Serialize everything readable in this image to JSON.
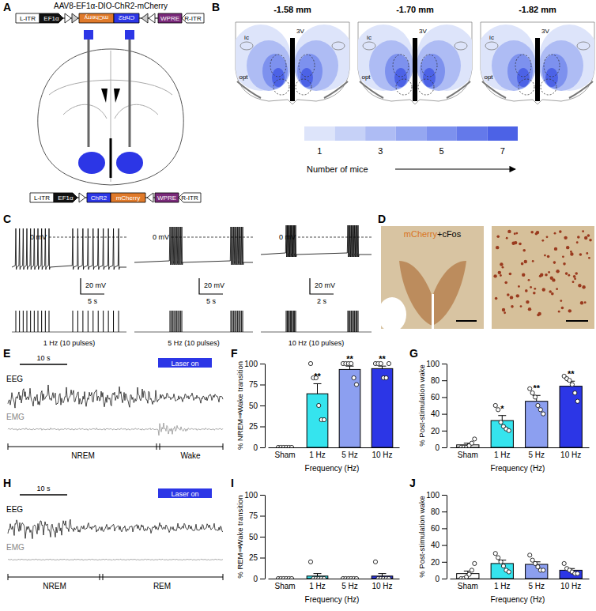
{
  "panel_labels": [
    "A",
    "B",
    "C",
    "D",
    "E",
    "F",
    "G",
    "H",
    "I",
    "J"
  ],
  "construct": {
    "title": "AAV8-EF1α-DIO-ChR2-mCherry",
    "top": [
      "L-ITR",
      "EF1α",
      "mCherry",
      "ChR2",
      "WPRE",
      "R-ITR"
    ],
    "bottom": [
      "L-ITR",
      "EF1α",
      "ChR2",
      "mCherry",
      "WPRE",
      "R-ITR"
    ]
  },
  "atlas": {
    "sections": [
      "-1.58 mm",
      "-1.70 mm",
      "-1.82 mm"
    ],
    "labels": [
      "ic",
      "opt",
      "3V"
    ],
    "scale": {
      "title": "Number of mice",
      "levels": [
        1,
        2,
        3,
        4,
        5,
        6,
        7
      ],
      "ticks": [
        1,
        3,
        5,
        7
      ],
      "colors": [
        "#dde4fa",
        "#c6d1f7",
        "#aebcf4",
        "#95a7f1",
        "#7d91ee",
        "#6479ea",
        "#4c62e6"
      ]
    }
  },
  "traces": [
    {
      "zero": "0 mV",
      "amp": "20 mV",
      "time": "5 s",
      "label": "1 Hz (10 pulses)",
      "n_pulses": 10
    },
    {
      "zero": "0 mV",
      "amp": "20 mV",
      "time": "5 s",
      "label": "5 Hz (10 pulses)",
      "n_pulses": 10
    },
    {
      "zero": "0 mV",
      "amp": "20 mV",
      "time": "2 s",
      "label": "10 Hz (10 pulses)",
      "n_pulses": 10
    }
  ],
  "histology": {
    "stain_a": "mCherry",
    "stain_b": "+cFos"
  },
  "sleep": [
    {
      "time": "10 s",
      "eeg": "EEG",
      "emg": "EMG",
      "laser": "Laser on",
      "states": [
        "NREM",
        "Wake"
      ]
    },
    {
      "time": "10 s",
      "eeg": "EEG",
      "emg": "EMG",
      "laser": "Laser on",
      "states": [
        "NREM",
        "REM"
      ]
    }
  ],
  "chart_data": [
    {
      "type": "bar",
      "ylabel": "% NREM⇒Wake transition",
      "xlabel": "Frequency (Hz)",
      "categories": [
        "Sham",
        "1 Hz",
        "5 Hz",
        "10 Hz"
      ],
      "values": [
        0,
        64,
        93,
        94
      ],
      "errors": [
        0,
        12,
        4,
        3
      ],
      "points": [
        [
          0,
          0,
          0,
          0,
          0,
          0
        ],
        [
          100,
          83,
          83,
          50,
          33,
          33
        ],
        [
          100,
          100,
          100,
          100,
          83,
          75
        ],
        [
          100,
          100,
          100,
          83,
          83,
          100
        ]
      ],
      "significance": [
        null,
        "**",
        "**",
        "**"
      ],
      "colors": [
        "#ffffff",
        "#35e4ee",
        "#8c9ff0",
        "#2c36e6"
      ],
      "ylim": [
        0,
        100
      ],
      "yticks": [
        0,
        25,
        50,
        75,
        100
      ]
    },
    {
      "type": "bar",
      "ylabel": "% Post-stimulation wake",
      "xlabel": "Frequency (Hz)",
      "categories": [
        "Sham",
        "1 Hz",
        "5 Hz",
        "10 Hz"
      ],
      "values": [
        3,
        32,
        55,
        73
      ],
      "errors": [
        2,
        6,
        7,
        6
      ],
      "points": [
        [
          0,
          0,
          0,
          2,
          5,
          10
        ],
        [
          50,
          45,
          30,
          25,
          22,
          20
        ],
        [
          70,
          65,
          60,
          50,
          45,
          40
        ],
        [
          85,
          82,
          80,
          75,
          65,
          55
        ]
      ],
      "significance": [
        null,
        "*",
        "**",
        "**"
      ],
      "colors": [
        "#ffffff",
        "#35e4ee",
        "#8c9ff0",
        "#2c36e6"
      ],
      "ylim": [
        0,
        100
      ],
      "yticks": [
        0,
        20,
        40,
        60,
        80,
        100
      ]
    },
    {
      "type": "bar",
      "ylabel": "% REM⇒Wake transition",
      "xlabel": "Frequency (Hz)",
      "categories": [
        "Sham",
        "1 Hz",
        "5 Hz",
        "10 Hz"
      ],
      "values": [
        0,
        3,
        0,
        3
      ],
      "errors": [
        0,
        3,
        0,
        3
      ],
      "points": [
        [
          0,
          0,
          0,
          0,
          0,
          0
        ],
        [
          20,
          0,
          0,
          0,
          0,
          0
        ],
        [
          0,
          0,
          0,
          0,
          0,
          0
        ],
        [
          20,
          0,
          0,
          0,
          0,
          0
        ]
      ],
      "colors": [
        "#ffffff",
        "#35e4ee",
        "#8c9ff0",
        "#2c36e6"
      ],
      "ylim": [
        0,
        100
      ],
      "yticks": [
        0,
        25,
        50,
        75,
        100
      ]
    },
    {
      "type": "bar",
      "ylabel": "% Post-stimulation wake",
      "xlabel": "Frequency (Hz)",
      "categories": [
        "Sham",
        "1 Hz",
        "5 Hz",
        "10 Hz"
      ],
      "values": [
        6,
        18,
        17,
        10
      ],
      "errors": [
        3,
        4,
        3,
        2
      ],
      "points": [
        [
          0,
          0,
          2,
          5,
          10,
          18
        ],
        [
          30,
          25,
          20,
          15,
          10,
          8
        ],
        [
          28,
          22,
          18,
          14,
          10,
          10
        ],
        [
          18,
          12,
          10,
          8,
          6,
          6
        ]
      ],
      "colors": [
        "#ffffff",
        "#35e4ee",
        "#8c9ff0",
        "#2c36e6"
      ],
      "ylim": [
        0,
        100
      ],
      "yticks": [
        0,
        20,
        40,
        60,
        80,
        100
      ]
    }
  ]
}
